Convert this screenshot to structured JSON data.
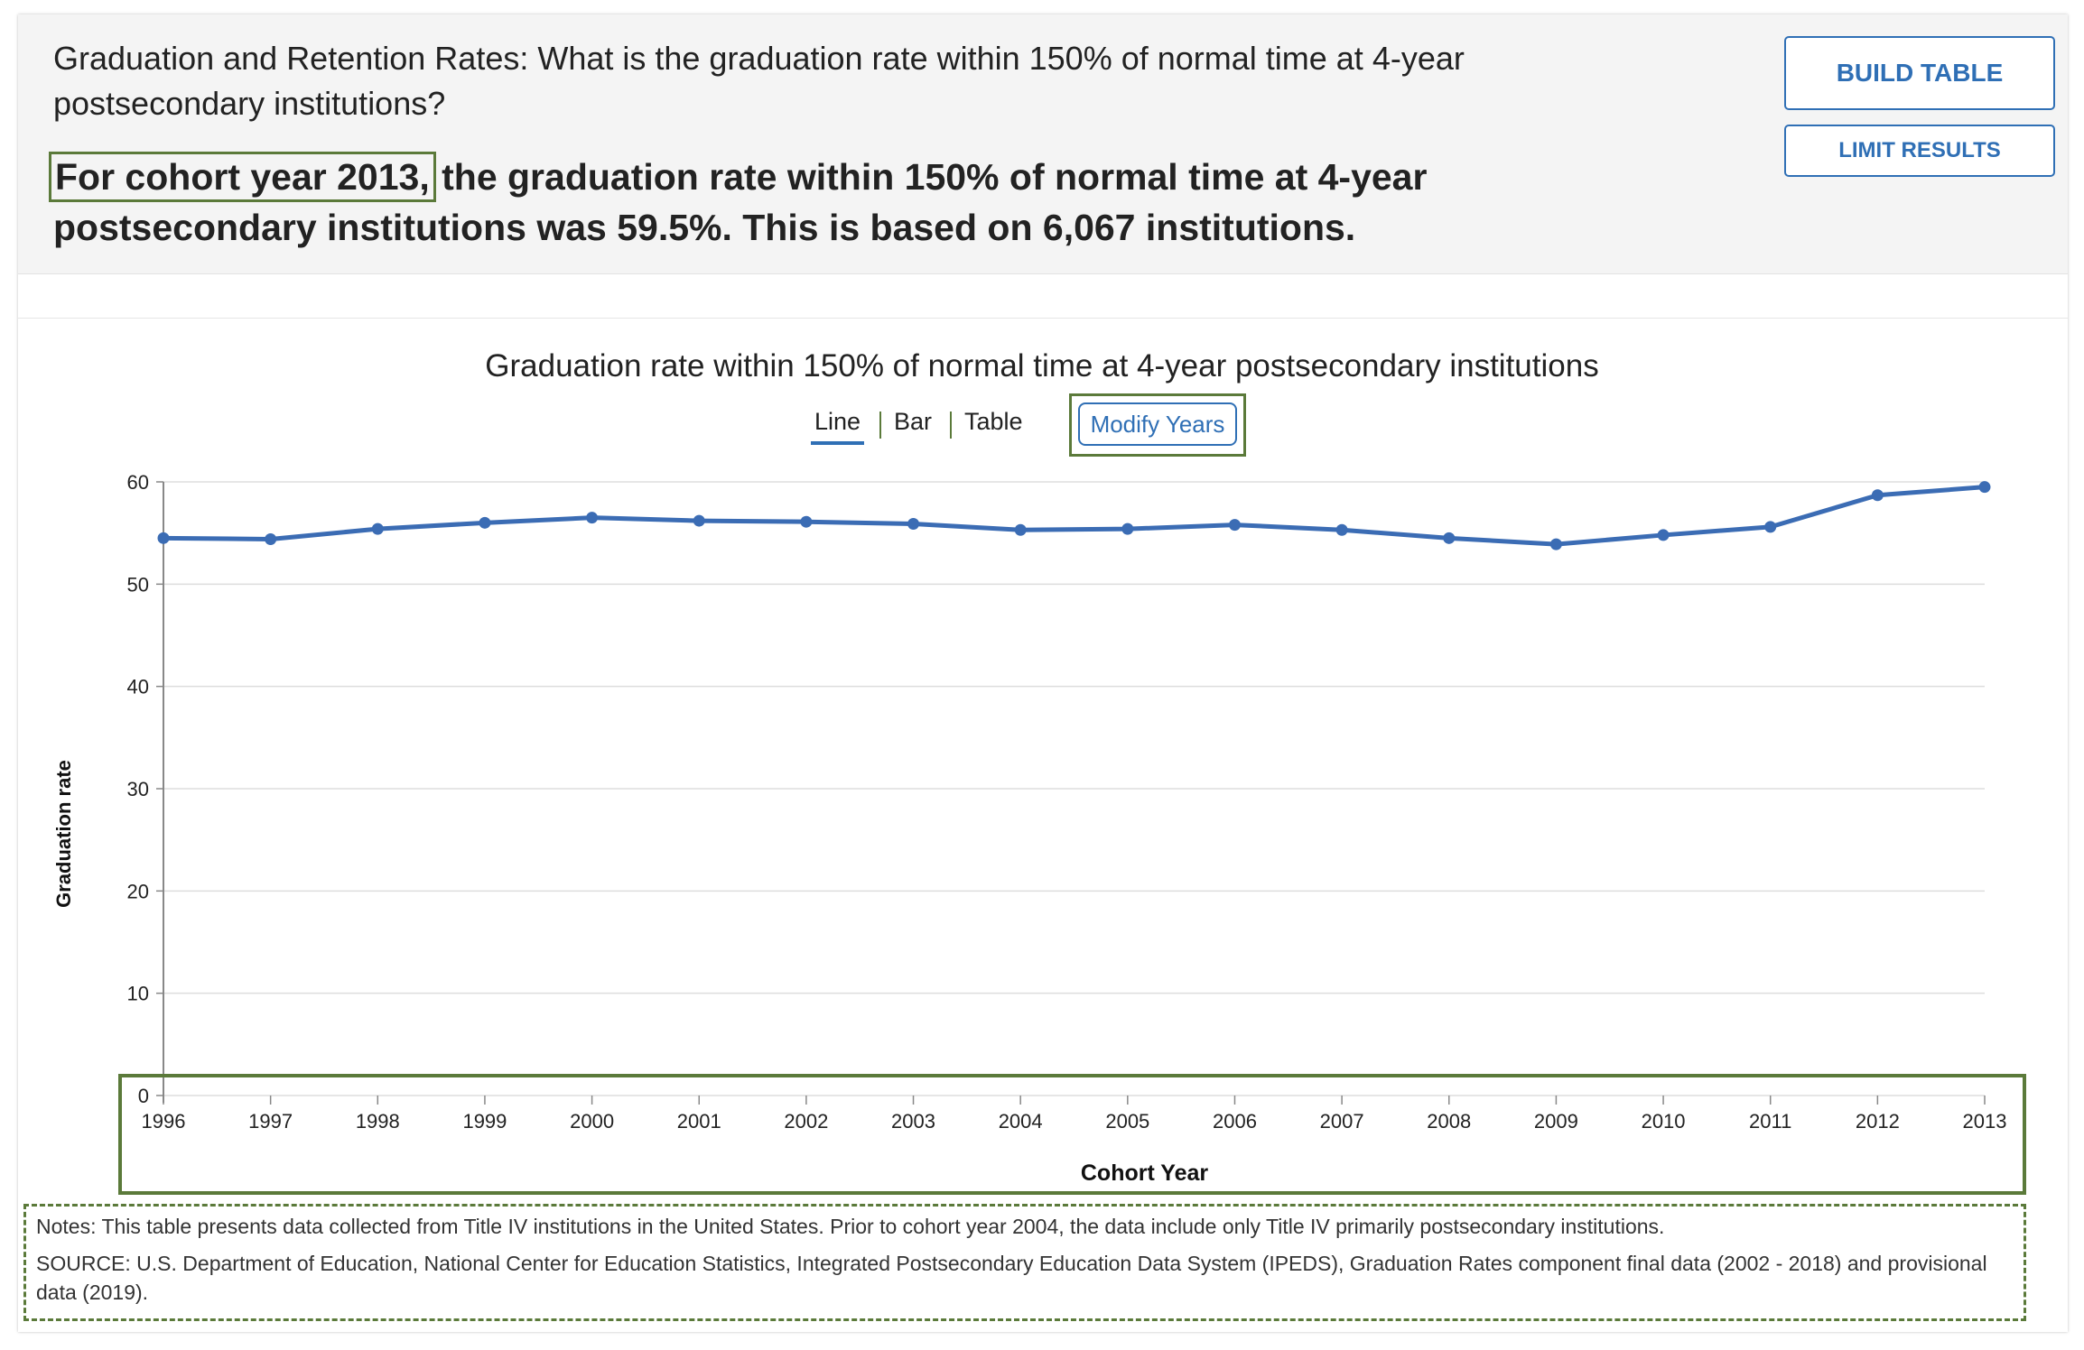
{
  "header": {
    "question": "Graduation and Retention Rates: What is the graduation rate within 150% of normal time at 4-year postsecondary institutions?",
    "answer_highlight": "For cohort year 2013,",
    "answer_rest": " the graduation rate within 150% of normal time at 4-year postsecondary institutions was 59.5%. This is based on 6,067 institutions."
  },
  "buttons": {
    "build_table": "BUILD TABLE",
    "limit_results": "LIMIT RESULTS",
    "modify_years": "Modify Years"
  },
  "view_tabs": {
    "line": "Line",
    "bar": "Bar",
    "table": "Table",
    "active": "Line"
  },
  "colors": {
    "accent": "#2f6fb5",
    "line": "#3b6cb4",
    "highlight_box": "#5b7a3a"
  },
  "chart_data": {
    "type": "line",
    "title": "Graduation rate within 150% of normal time at 4-year postsecondary institutions",
    "xlabel": "Cohort Year",
    "ylabel": "Graduation rate",
    "ylim": [
      0,
      60
    ],
    "yticks": [
      0,
      10,
      20,
      30,
      40,
      50,
      60
    ],
    "grid": true,
    "x": [
      "1996",
      "1997",
      "1998",
      "1999",
      "2000",
      "2001",
      "2002",
      "2003",
      "2004",
      "2005",
      "2006",
      "2007",
      "2008",
      "2009",
      "2010",
      "2011",
      "2012",
      "2013"
    ],
    "series": [
      {
        "values": [
          54.5,
          54.4,
          55.4,
          56.0,
          56.5,
          56.2,
          56.1,
          55.9,
          55.3,
          55.4,
          55.8,
          55.3,
          54.5,
          53.9,
          54.8,
          55.6,
          58.7,
          59.5
        ]
      }
    ]
  },
  "notes": {
    "note": "Notes: This table presents data collected from Title IV institutions in the United States. Prior to cohort year 2004, the data include only Title IV primarily postsecondary institutions.",
    "source": "SOURCE: U.S. Department of Education, National Center for Education Statistics, Integrated Postsecondary Education Data System (IPEDS), Graduation Rates component final data (2002 - 2018) and provisional data (2019)."
  }
}
